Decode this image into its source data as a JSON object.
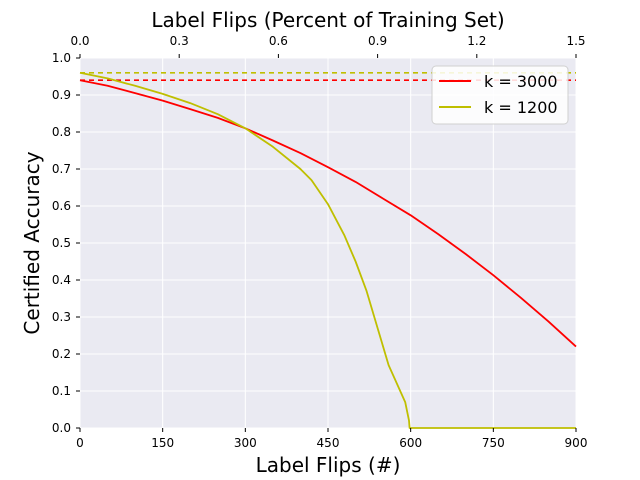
{
  "chart_data": {
    "type": "line",
    "title": "Label Flips (Percent of Training Set)",
    "xlabel": "Label Flips (#)",
    "ylabel": "Certified Accuracy",
    "xlim": [
      0,
      900
    ],
    "ylim": [
      0,
      1.0
    ],
    "xticks": [
      "0",
      "150",
      "300",
      "450",
      "600",
      "750",
      "900"
    ],
    "xtick_values": [
      0,
      150,
      300,
      450,
      600,
      750,
      900
    ],
    "yticks": [
      "0.0",
      "0.1",
      "0.2",
      "0.3",
      "0.4",
      "0.5",
      "0.6",
      "0.7",
      "0.8",
      "0.9",
      "1.0"
    ],
    "ytick_values": [
      0,
      0.1,
      0.2,
      0.3,
      0.4,
      0.5,
      0.6,
      0.7,
      0.8,
      0.9,
      1.0
    ],
    "top_xticks": [
      "0.0",
      "0.3",
      "0.6",
      "0.9",
      "1.2",
      "1.5"
    ],
    "top_xtick_values": [
      0,
      0.3,
      0.6,
      0.9,
      1.2,
      1.5
    ],
    "top_xlim": [
      0,
      1.5
    ],
    "grid": true,
    "background": "#eaeaf2",
    "legend_position": "top-right",
    "series": [
      {
        "name": "k = 3000",
        "color": "#ff0000",
        "x": [
          0,
          50,
          100,
          150,
          200,
          250,
          300,
          350,
          400,
          450,
          500,
          550,
          600,
          650,
          700,
          750,
          800,
          850,
          900
        ],
        "y": [
          0.94,
          0.925,
          0.905,
          0.885,
          0.862,
          0.838,
          0.81,
          0.777,
          0.743,
          0.705,
          0.665,
          0.62,
          0.575,
          0.524,
          0.47,
          0.413,
          0.352,
          0.288,
          0.22
        ],
        "reference": 0.94
      },
      {
        "name": "k = 1200",
        "color": "#bfbf00",
        "x": [
          0,
          50,
          100,
          150,
          200,
          250,
          300,
          350,
          400,
          420,
          450,
          480,
          500,
          520,
          540,
          560,
          575,
          590,
          597,
          598,
          600,
          900
        ],
        "y": [
          0.96,
          0.945,
          0.925,
          0.903,
          0.878,
          0.848,
          0.81,
          0.76,
          0.7,
          0.67,
          0.605,
          0.52,
          0.45,
          0.37,
          0.27,
          0.17,
          0.12,
          0.07,
          0.02,
          0.0,
          0.0,
          0.0
        ],
        "reference": 0.96
      }
    ]
  }
}
